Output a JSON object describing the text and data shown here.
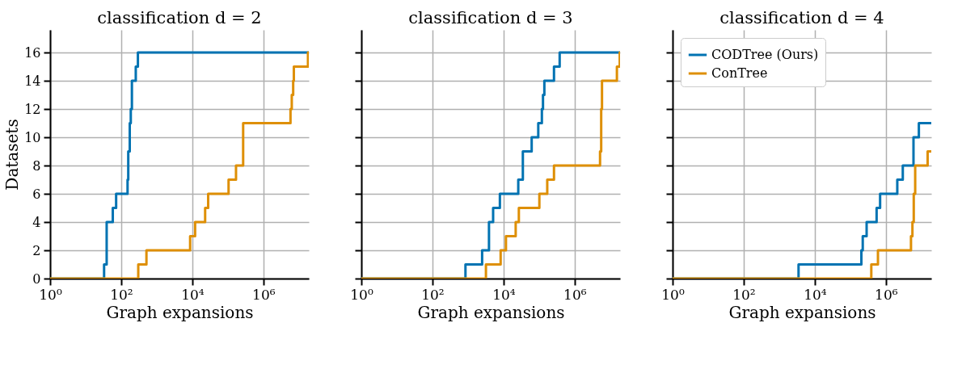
{
  "chart_data": [
    {
      "type": "step",
      "title": "classification d = 2",
      "xlabel": "Graph expansions",
      "ylabel": "Datasets",
      "log": "x",
      "grid": true,
      "legend": false,
      "xlim": [
        1,
        19000000
      ],
      "xticks": [
        {
          "value": 1,
          "label": "10⁰"
        },
        {
          "value": 100,
          "label": "10²"
        },
        {
          "value": 10000,
          "label": "10⁴"
        },
        {
          "value": 1000000,
          "label": "10⁶"
        }
      ],
      "ylim": [
        0,
        17.6
      ],
      "yticks": [
        0,
        2,
        4,
        6,
        8,
        10,
        12,
        14,
        16
      ],
      "series": [
        {
          "color": "#0173b2",
          "x": [
            1,
            33,
            39,
            58,
            72,
            151,
            158,
            174,
            186,
            200,
            257,
            295,
            19000000
          ],
          "values": [
            0,
            1,
            4,
            5,
            6,
            7,
            9,
            11,
            12,
            14,
            15,
            16,
            16
          ]
        },
        {
          "color": "#de8f05",
          "x": [
            1,
            302,
            513,
            8700,
            12000,
            23000,
            28000,
            105000,
            170000,
            270000,
            5800000,
            6300000,
            6900000,
            7200000,
            18000000,
            19000000
          ],
          "values": [
            0,
            1,
            2,
            3,
            4,
            5,
            6,
            7,
            8,
            11,
            12,
            13,
            14,
            15,
            16,
            16
          ]
        }
      ]
    },
    {
      "type": "step",
      "title": "classification d = 3",
      "xlabel": "Graph expansions",
      "log": "x",
      "grid": true,
      "legend": false,
      "tick_labels": "x",
      "xlim": [
        1,
        19000000
      ],
      "xticks": [
        {
          "value": 1,
          "label": "10⁰"
        },
        {
          "value": 100,
          "label": "10²"
        },
        {
          "value": 10000,
          "label": "10⁴"
        },
        {
          "value": 1000000,
          "label": "10⁶"
        }
      ],
      "ylim": [
        0,
        17.6
      ],
      "yticks": [
        0,
        2,
        4,
        6,
        8,
        10,
        12,
        14,
        16
      ],
      "series": [
        {
          "color": "#0173b2",
          "x": [
            1,
            850,
            2500,
            3900,
            5100,
            7900,
            26000,
            35000,
            62000,
            95000,
            120000,
            129000,
            141000,
            263000,
            380000,
            19000000
          ],
          "values": [
            0,
            1,
            2,
            4,
            5,
            6,
            7,
            9,
            10,
            11,
            12,
            13,
            14,
            15,
            16,
            16
          ]
        },
        {
          "color": "#de8f05",
          "x": [
            1,
            3200,
            8300,
            11700,
            22000,
            27000,
            102000,
            170000,
            263000,
            5200000,
            5600000,
            5900000,
            15500000,
            18600000,
            19000000
          ],
          "values": [
            0,
            1,
            2,
            3,
            4,
            5,
            6,
            7,
            8,
            9,
            12,
            14,
            15,
            16,
            16
          ]
        }
      ]
    },
    {
      "type": "step",
      "title": "classification d = 4",
      "xlabel": "Graph expansions",
      "log": "x",
      "grid": true,
      "legend": "top left",
      "tick_labels": "x",
      "xlim": [
        1,
        19000000
      ],
      "xticks": [
        {
          "value": 1,
          "label": "10⁰"
        },
        {
          "value": 100,
          "label": "10²"
        },
        {
          "value": 10000,
          "label": "10⁴"
        },
        {
          "value": 1000000,
          "label": "10⁶"
        }
      ],
      "ylim": [
        0,
        17.6
      ],
      "yticks": [
        0,
        2,
        4,
        6,
        8,
        10,
        12,
        14,
        16
      ],
      "series": [
        {
          "name": "CODTree (Ours)",
          "color": "#0173b2",
          "x": [
            1,
            3500,
            205000,
            224000,
            288000,
            550000,
            690000,
            2100000,
            3000000,
            6000000,
            8500000,
            19000000
          ],
          "values": [
            0,
            1,
            2,
            3,
            4,
            5,
            6,
            7,
            8,
            10,
            11,
            11
          ]
        },
        {
          "name": "ConTree",
          "color": "#de8f05",
          "x": [
            1,
            390000,
            600000,
            5100000,
            5600000,
            6100000,
            6700000,
            15000000,
            19000000
          ],
          "values": [
            0,
            1,
            2,
            3,
            4,
            6,
            8,
            9,
            9
          ]
        }
      ]
    }
  ]
}
